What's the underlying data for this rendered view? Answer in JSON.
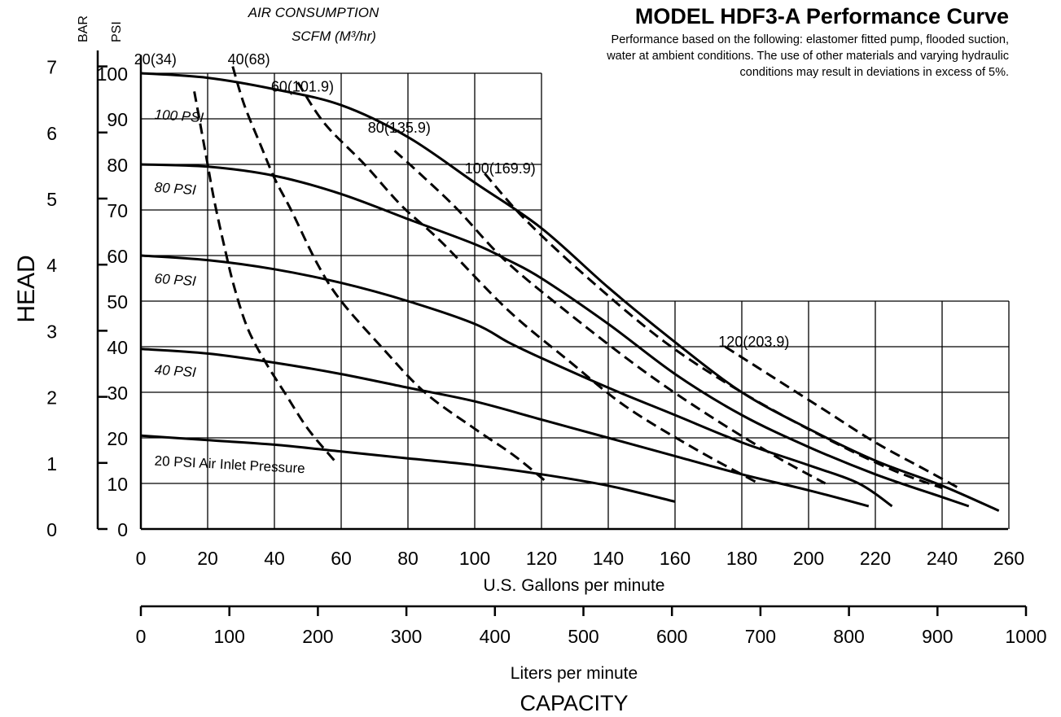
{
  "chart_data": {
    "type": "line",
    "title": "MODEL HDF3-A Performance Curve",
    "notes": [
      "Performance based on the following: elastomer fitted pump, flooded suction,",
      "water at ambient conditions. The use of other materials and varying hydraulic",
      "conditions may result in deviations in excess of 5%."
    ],
    "air_consumption_title": [
      "AIR CONSUMPTION",
      "SCFM (M³/hr)"
    ],
    "y_title": "HEAD",
    "y_units": [
      "BAR",
      "PSI"
    ],
    "x_title": "CAPACITY",
    "x_primary_label": "U.S. Gallons per minute",
    "x_secondary_label": "Liters per minute",
    "x_range": [
      0,
      260
    ],
    "y_range": [
      0,
      100
    ],
    "x_ticks": [
      0,
      20,
      40,
      60,
      80,
      100,
      120,
      140,
      160,
      180,
      200,
      220,
      240,
      260
    ],
    "y_ticks": [
      0,
      10,
      20,
      30,
      40,
      50,
      60,
      70,
      80,
      90,
      100
    ],
    "bar_ticks": [
      0,
      1,
      2,
      3,
      4,
      5,
      6,
      7
    ],
    "lpm_ticks": [
      0,
      100,
      200,
      300,
      400,
      500,
      600,
      700,
      800,
      900,
      1000
    ],
    "grid": true,
    "pressure_curves": [
      {
        "name": "100 PSI",
        "points": [
          [
            0,
            100
          ],
          [
            20,
            99
          ],
          [
            40,
            96.5
          ],
          [
            60,
            93
          ],
          [
            80,
            86
          ],
          [
            100,
            76
          ],
          [
            120,
            66
          ],
          [
            140,
            53
          ],
          [
            160,
            41
          ],
          [
            180,
            30
          ],
          [
            200,
            22
          ],
          [
            220,
            15
          ],
          [
            240,
            9.5
          ],
          [
            257,
            4
          ]
        ]
      },
      {
        "name": "80 PSI",
        "points": [
          [
            0,
            80
          ],
          [
            20,
            79.5
          ],
          [
            40,
            77.5
          ],
          [
            60,
            73.5
          ],
          [
            80,
            68
          ],
          [
            100,
            62.5
          ],
          [
            110,
            59
          ],
          [
            120,
            55
          ],
          [
            140,
            45
          ],
          [
            160,
            34
          ],
          [
            180,
            25
          ],
          [
            200,
            18
          ],
          [
            220,
            12
          ],
          [
            240,
            7
          ],
          [
            248,
            5
          ]
        ]
      },
      {
        "name": "60 PSI",
        "points": [
          [
            0,
            60
          ],
          [
            20,
            59
          ],
          [
            40,
            57
          ],
          [
            60,
            54
          ],
          [
            80,
            50
          ],
          [
            100,
            45
          ],
          [
            110,
            41
          ],
          [
            120,
            37.5
          ],
          [
            140,
            31
          ],
          [
            160,
            25
          ],
          [
            180,
            19
          ],
          [
            200,
            14
          ],
          [
            215,
            10
          ],
          [
            225,
            5
          ]
        ]
      },
      {
        "name": "40 PSI",
        "points": [
          [
            0,
            39.5
          ],
          [
            20,
            38.5
          ],
          [
            40,
            36.5
          ],
          [
            60,
            34
          ],
          [
            80,
            31
          ],
          [
            100,
            28
          ],
          [
            120,
            24
          ],
          [
            140,
            20
          ],
          [
            160,
            16
          ],
          [
            180,
            12
          ],
          [
            200,
            8.5
          ],
          [
            218,
            5
          ]
        ]
      },
      {
        "name": "20 PSI Air Inlet Pressure",
        "points": [
          [
            0,
            20.5
          ],
          [
            20,
            19.5
          ],
          [
            40,
            18.5
          ],
          [
            60,
            17
          ],
          [
            80,
            15.5
          ],
          [
            100,
            14
          ],
          [
            120,
            12
          ],
          [
            140,
            9.5
          ],
          [
            160,
            6
          ]
        ]
      }
    ],
    "air_curves": [
      {
        "name": "20(34)",
        "points": [
          [
            16,
            96
          ],
          [
            18,
            88
          ],
          [
            20,
            80
          ],
          [
            22,
            72
          ],
          [
            25,
            62
          ],
          [
            28,
            53
          ],
          [
            32,
            44
          ],
          [
            37,
            37
          ],
          [
            43,
            30
          ],
          [
            50,
            22
          ],
          [
            58,
            15
          ]
        ]
      },
      {
        "name": "40(68)",
        "points": [
          [
            27.5,
            101.5
          ],
          [
            31,
            93
          ],
          [
            36,
            84
          ],
          [
            40,
            77
          ],
          [
            45,
            70
          ],
          [
            53,
            58
          ],
          [
            60,
            50
          ],
          [
            72,
            40
          ],
          [
            85,
            30
          ],
          [
            100,
            22
          ],
          [
            112,
            16
          ],
          [
            122,
            10
          ]
        ]
      },
      {
        "name": "60(101.9)",
        "points": [
          [
            47,
            98
          ],
          [
            55,
            89
          ],
          [
            67,
            80
          ],
          [
            78,
            71
          ],
          [
            90,
            63
          ],
          [
            110,
            48
          ],
          [
            128,
            37
          ],
          [
            145,
            27
          ],
          [
            165,
            18
          ],
          [
            185,
            10
          ]
        ]
      },
      {
        "name": "80(135.9)",
        "points": [
          [
            76,
            83
          ],
          [
            85,
            77
          ],
          [
            95,
            70
          ],
          [
            109,
            59
          ],
          [
            127,
            48
          ],
          [
            150,
            35
          ],
          [
            170,
            25
          ],
          [
            190,
            16
          ],
          [
            205,
            10
          ]
        ]
      },
      {
        "name": "100(169.9)",
        "points": [
          [
            103,
            78
          ],
          [
            115,
            68
          ],
          [
            134,
            55
          ],
          [
            157,
            41
          ],
          [
            180,
            30
          ],
          [
            205,
            20
          ],
          [
            225,
            13
          ],
          [
            240,
            9
          ]
        ]
      },
      {
        "name": "120(203.9)",
        "points": [
          [
            175,
            40
          ],
          [
            190,
            33
          ],
          [
            205,
            26
          ],
          [
            220,
            19
          ],
          [
            235,
            13
          ],
          [
            245,
            9
          ]
        ]
      }
    ]
  }
}
